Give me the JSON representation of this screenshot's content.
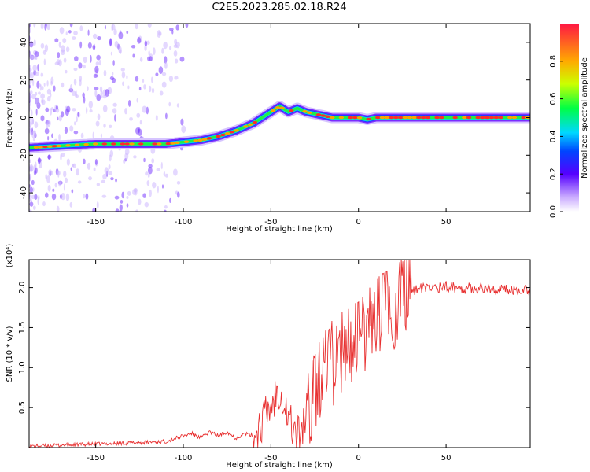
{
  "title": "C2E5.2023.285.02.18.R24",
  "chart_data": [
    {
      "type": "heatmap",
      "xlabel": "Height of straight line (km)",
      "ylabel": "Frequency (Hz)",
      "xlim": [
        -188,
        98
      ],
      "ylim": [
        -50,
        50
      ],
      "xticks": [
        -150,
        -100,
        -50,
        0,
        50
      ],
      "yticks": [
        -40,
        -20,
        0,
        20,
        40
      ],
      "ridge": {
        "x": [
          -188,
          -170,
          -150,
          -130,
          -110,
          -100,
          -90,
          -80,
          -70,
          -60,
          -50,
          -45,
          -40,
          -35,
          -30,
          -25,
          -20,
          -15,
          -10,
          -5,
          0,
          5,
          10,
          15,
          20,
          30,
          50,
          70,
          98
        ],
        "y": [
          -16,
          -15,
          -14,
          -14,
          -14,
          -13,
          -12,
          -10,
          -7,
          -3,
          3,
          6,
          3,
          5,
          3,
          2,
          1,
          0,
          0,
          0,
          0,
          -1,
          0,
          0,
          0,
          0,
          0,
          0,
          0
        ]
      },
      "colorbar": {
        "label": "Normalized spectral amplitude",
        "ticks": [
          0.0,
          0.2,
          0.4,
          0.6,
          0.8
        ],
        "range": [
          0,
          1
        ]
      }
    },
    {
      "type": "line",
      "xlabel": "Height of straight line (km)",
      "ylabel": "SNR (10 * v/v)",
      "y_multiplier_label": "(x10⁴)",
      "xlim": [
        -188,
        98
      ],
      "ylim": [
        0,
        2.35
      ],
      "xticks": [
        -150,
        -100,
        -50,
        0,
        50
      ],
      "yticks": [
        0.5,
        1.0,
        1.5,
        2.0
      ],
      "ytick_labels": [
        "0.5",
        "1.0",
        "1.5",
        "2.0"
      ],
      "series": [
        {
          "color": "#e83030",
          "x": [
            -188,
            -160,
            -130,
            -110,
            -100,
            -95,
            -90,
            -85,
            -80,
            -75,
            -70,
            -65,
            -60,
            -55,
            -50,
            -45,
            -40,
            -35,
            -30,
            -25,
            -20,
            -15,
            -10,
            -5,
            0,
            5,
            10,
            15,
            20,
            25,
            30,
            40,
            50,
            60,
            70,
            80,
            98
          ],
          "y": [
            0.02,
            0.04,
            0.06,
            0.08,
            0.15,
            0.18,
            0.12,
            0.2,
            0.15,
            0.2,
            0.12,
            0.18,
            0.15,
            0.35,
            0.55,
            0.8,
            0.4,
            0.15,
            0.4,
            0.75,
            1.0,
            1.1,
            1.25,
            1.3,
            1.4,
            1.55,
            1.65,
            1.75,
            1.8,
            1.92,
            1.98,
            2.0,
            2.02,
            2.0,
            2.0,
            1.98,
            1.98
          ]
        }
      ]
    }
  ]
}
